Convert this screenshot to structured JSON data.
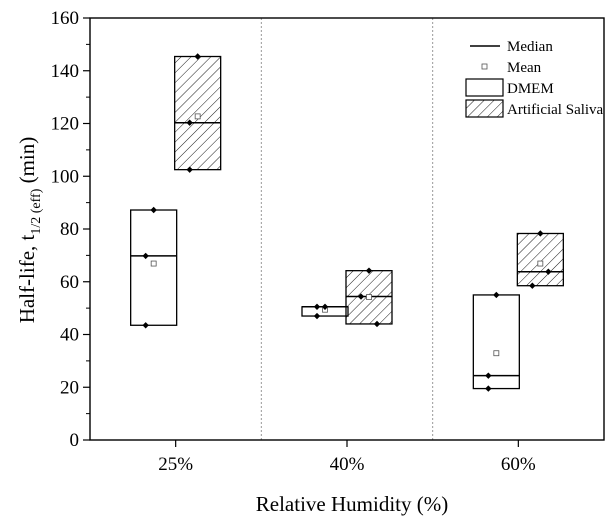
{
  "chart_data": {
    "type": "box",
    "xlabel": "Relative Humidity (%)",
    "ylabel_main": "Half-life, t",
    "ylabel_sub": "1/2 (eff)",
    "ylabel_unit": " (min)",
    "ylim": [
      0,
      160
    ],
    "yticks": [
      "0",
      "20",
      "40",
      "60",
      "80",
      "100",
      "120",
      "140",
      "160"
    ],
    "categories": [
      "25%",
      "40%",
      "60%"
    ],
    "legend_position": "top-right",
    "legend": {
      "median": "Median",
      "mean": "Mean",
      "dmem": "DMEM",
      "saliva": "Artificial Saliva"
    },
    "series": [
      {
        "name": "DMEM",
        "hatched": false,
        "boxes": [
          {
            "category": "25%",
            "low": 43.5,
            "high": 87.2,
            "median": 69.8,
            "mean": 66.9,
            "points": [
              87.2,
              69.8,
              43.5
            ]
          },
          {
            "category": "40%",
            "low": 47.0,
            "high": 50.5,
            "median": 50.5,
            "mean": 49.4,
            "points": [
              50.5,
              50.5,
              47.0
            ]
          },
          {
            "category": "60%",
            "low": 19.5,
            "high": 55.0,
            "median": 24.4,
            "mean": 32.9,
            "points": [
              55.0,
              24.4,
              19.5
            ]
          }
        ]
      },
      {
        "name": "Artificial Saliva",
        "hatched": true,
        "boxes": [
          {
            "category": "25%",
            "low": 102.5,
            "high": 145.4,
            "median": 120.3,
            "mean": 122.7,
            "points": [
              145.4,
              120.3,
              102.5
            ]
          },
          {
            "category": "40%",
            "low": 44.0,
            "high": 64.2,
            "median": 54.4,
            "mean": 54.2,
            "points": [
              64.2,
              54.4,
              44.0
            ]
          },
          {
            "category": "60%",
            "low": 58.5,
            "high": 78.3,
            "median": 63.8,
            "mean": 66.9,
            "points": [
              78.3,
              63.8,
              58.5
            ]
          }
        ]
      }
    ]
  }
}
